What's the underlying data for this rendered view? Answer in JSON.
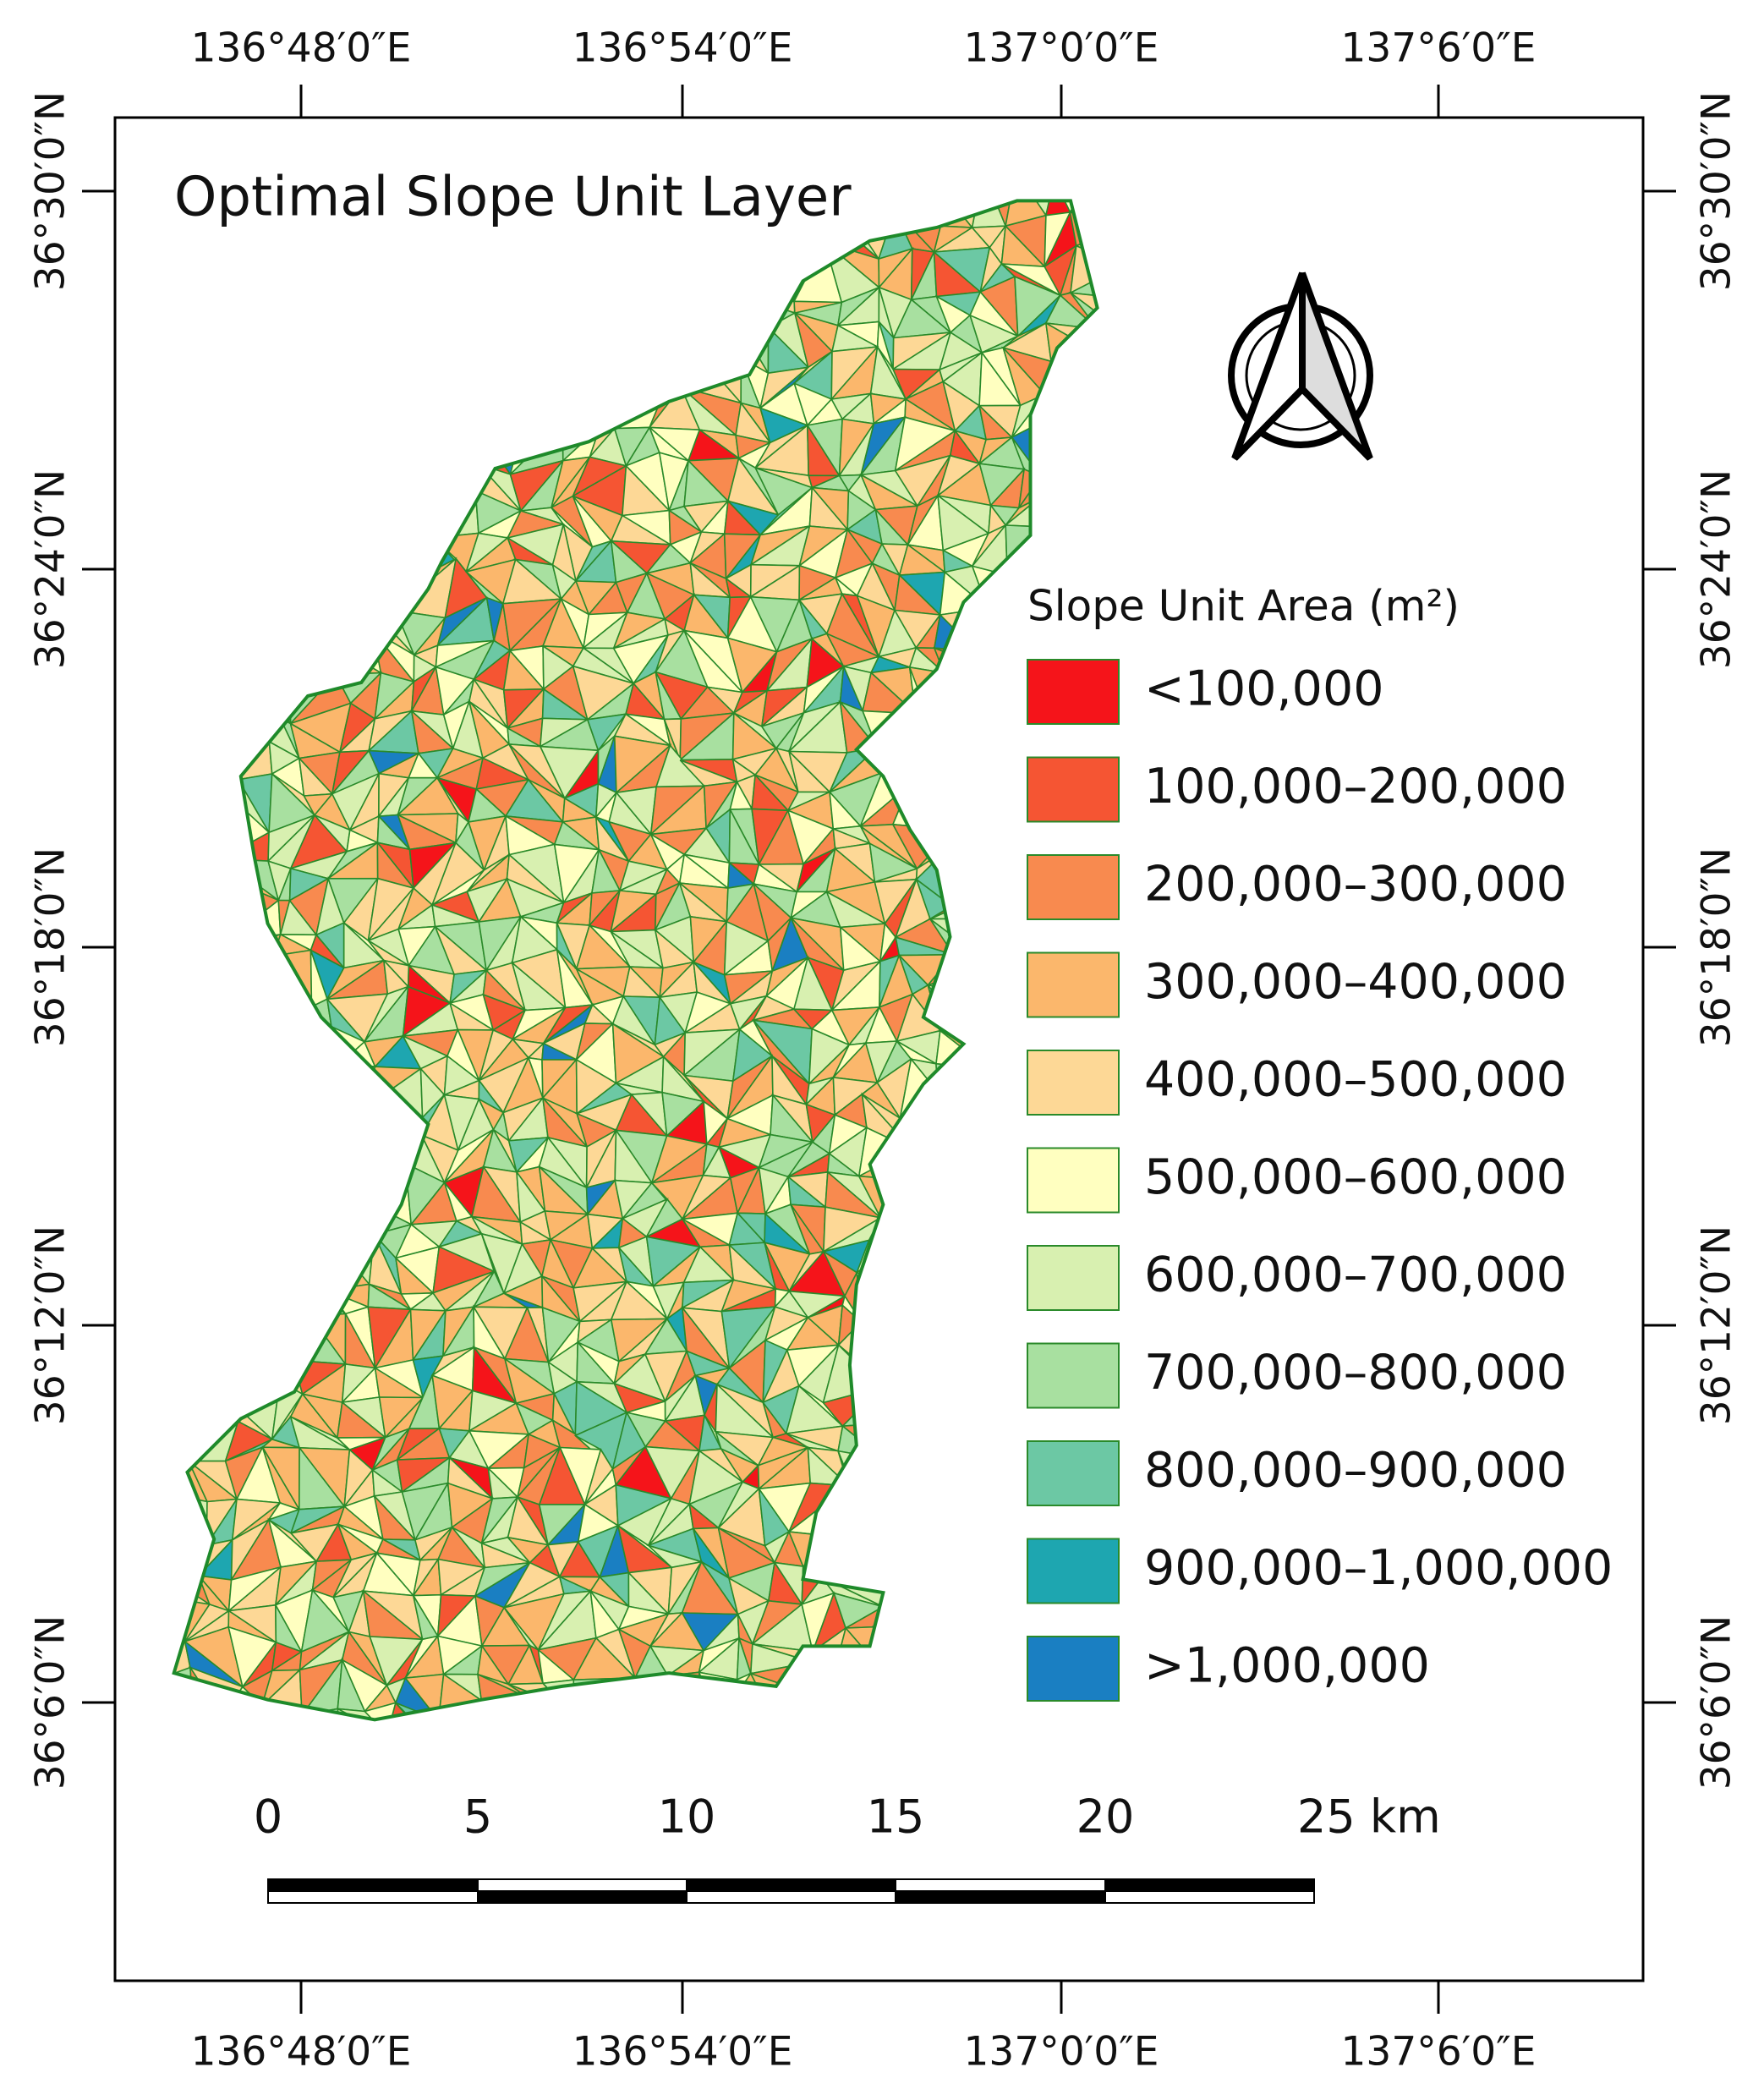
{
  "title": "Optimal Slope Unit Layer",
  "longitude_labels": [
    "136°48′0″E",
    "136°54′0″E",
    "137°0′0″E",
    "137°6′0″E"
  ],
  "latitude_labels": [
    "36°30′0″N",
    "36°24′0″N",
    "36°18′0″N",
    "36°12′0″N",
    "36°6′0″N"
  ],
  "legend": {
    "title": "Slope Unit Area (m²)",
    "items": [
      {
        "label": "<100,000",
        "color": "#f5141a"
      },
      {
        "label": "100,000–200,000",
        "color": "#f55533"
      },
      {
        "label": "200,000–300,000",
        "color": "#f88a4f"
      },
      {
        "label": "300,000–400,000",
        "color": "#fbb76c"
      },
      {
        "label": "400,000–500,000",
        "color": "#fdd896"
      },
      {
        "label": "500,000–600,000",
        "color": "#ffffc0"
      },
      {
        "label": "600,000–700,000",
        "color": "#d8f0b0"
      },
      {
        "label": "700,000–800,000",
        "color": "#a8e0a0"
      },
      {
        "label": "800,000–900,000",
        "color": "#6cc8a4"
      },
      {
        "label": "900,000–1,000,000",
        "color": "#1ea6b0"
      },
      {
        "label": ">1,000,000",
        "color": "#1a7fc2"
      }
    ]
  },
  "scale_bar": {
    "labels": [
      "0",
      "5",
      "10",
      "15",
      "20",
      "25 km"
    ]
  }
}
